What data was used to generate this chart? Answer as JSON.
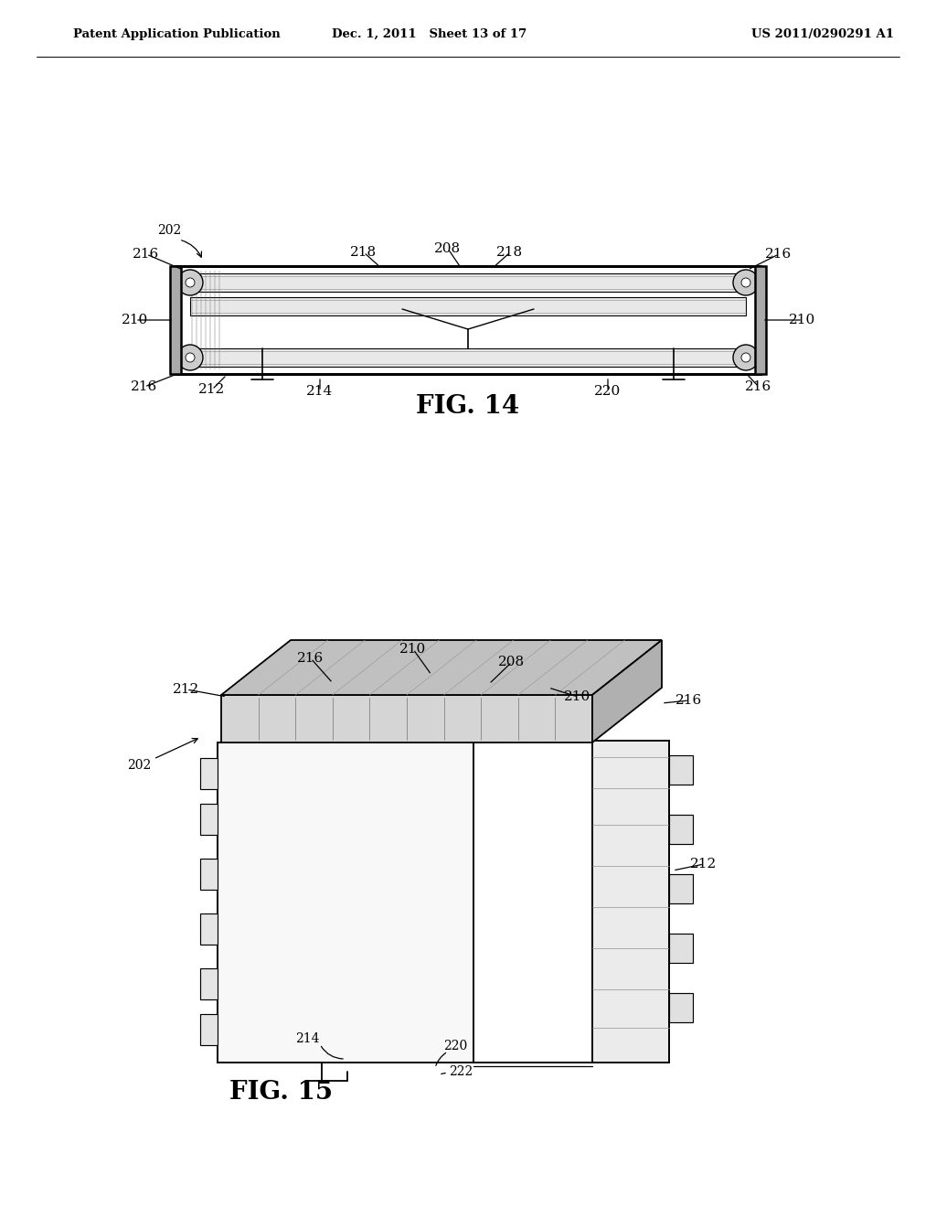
{
  "bg_color": "#ffffff",
  "line_color": "#000000",
  "gray_light": "#e8e8e8",
  "gray_mid": "#cccccc",
  "gray_dark": "#aaaaaa",
  "header_left": "Patent Application Publication",
  "header_center": "Dec. 1, 2011   Sheet 13 of 17",
  "header_right": "US 2011/0290291 A1",
  "fig14_label": "FIG. 14",
  "fig15_label": "FIG. 15"
}
